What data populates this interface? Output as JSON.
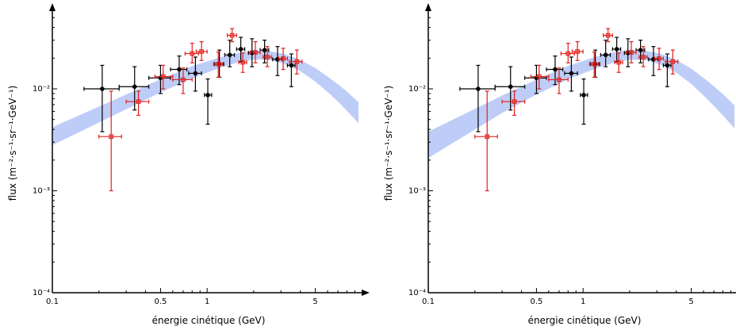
{
  "colors": {
    "band": "#aec0f5",
    "series_black": "#000000",
    "series_red": "#e0201b"
  },
  "chart_data": [
    {
      "type": "scatter",
      "xscale": "log",
      "yscale": "log",
      "xlim": [
        0.1,
        9.5
      ],
      "ylim": [
        0.0001,
        0.06
      ],
      "xlabel": "énergie cinétique (GeV)",
      "ylabel": "flux (m⁻²·s⁻¹·sr⁻¹·GeV⁻¹)",
      "xticks": [
        0.1,
        0.5,
        1,
        5
      ],
      "xtick_labels": [
        "0.1",
        "0.5",
        "1",
        "5"
      ],
      "yticks": [
        0.0001,
        0.001,
        0.01
      ],
      "ytick_labels": [
        "10⁻⁴",
        "10⁻³",
        "10⁻²"
      ],
      "band": {
        "x": [
          0.1,
          0.3,
          0.5,
          0.8,
          1.2,
          1.6,
          2.0,
          2.5,
          3.2,
          4.0,
          5.0,
          6.0,
          7.0,
          8.0,
          9.5
        ],
        "lower": [
          0.0028,
          0.0063,
          0.0092,
          0.0127,
          0.016,
          0.0183,
          0.0194,
          0.0193,
          0.0175,
          0.0149,
          0.0118,
          0.0093,
          0.0075,
          0.0061,
          0.0046
        ],
        "upper": [
          0.0042,
          0.0088,
          0.0124,
          0.0167,
          0.0203,
          0.0226,
          0.0237,
          0.0236,
          0.0218,
          0.0192,
          0.016,
          0.0132,
          0.0111,
          0.0094,
          0.0074
        ]
      },
      "series": [
        {
          "color": "black",
          "points": [
            {
              "x": 0.21,
              "y": 0.01,
              "xlo": 0.16,
              "xhi": 0.27,
              "ylo": 0.0038,
              "yhi": 0.017
            },
            {
              "x": 0.34,
              "y": 0.0105,
              "xlo": 0.27,
              "xhi": 0.42,
              "ylo": 0.0062,
              "yhi": 0.0165
            },
            {
              "x": 0.5,
              "y": 0.0128,
              "xlo": 0.42,
              "xhi": 0.58,
              "ylo": 0.009,
              "yhi": 0.017
            },
            {
              "x": 0.66,
              "y": 0.0155,
              "xlo": 0.58,
              "xhi": 0.74,
              "ylo": 0.011,
              "yhi": 0.021
            },
            {
              "x": 0.84,
              "y": 0.0142,
              "xlo": 0.76,
              "xhi": 0.92,
              "ylo": 0.0095,
              "yhi": 0.0205
            },
            {
              "x": 1.01,
              "y": 0.0087,
              "xlo": 0.96,
              "xhi": 1.07,
              "ylo": 0.0045,
              "yhi": 0.0125
            },
            {
              "x": 1.2,
              "y": 0.0175,
              "xlo": 1.12,
              "xhi": 1.28,
              "ylo": 0.013,
              "yhi": 0.024
            },
            {
              "x": 1.4,
              "y": 0.0215,
              "xlo": 1.3,
              "xhi": 1.5,
              "ylo": 0.0165,
              "yhi": 0.03
            },
            {
              "x": 1.65,
              "y": 0.0245,
              "xlo": 1.55,
              "xhi": 1.75,
              "ylo": 0.0185,
              "yhi": 0.032
            },
            {
              "x": 1.95,
              "y": 0.0225,
              "xlo": 1.85,
              "xhi": 2.05,
              "ylo": 0.0165,
              "yhi": 0.031
            },
            {
              "x": 2.35,
              "y": 0.024,
              "xlo": 2.2,
              "xhi": 2.5,
              "ylo": 0.018,
              "yhi": 0.03
            },
            {
              "x": 2.85,
              "y": 0.0195,
              "xlo": 2.65,
              "xhi": 3.05,
              "ylo": 0.0135,
              "yhi": 0.026
            },
            {
              "x": 3.5,
              "y": 0.017,
              "xlo": 3.3,
              "xhi": 3.7,
              "ylo": 0.0105,
              "yhi": 0.022
            }
          ]
        },
        {
          "color": "red",
          "points": [
            {
              "x": 0.24,
              "y": 0.0034,
              "xlo": 0.2,
              "xhi": 0.28,
              "ylo": 0.001,
              "yhi": 0.0095
            },
            {
              "x": 0.36,
              "y": 0.0075,
              "xlo": 0.3,
              "xhi": 0.42,
              "ylo": 0.0055,
              "yhi": 0.0095
            },
            {
              "x": 0.52,
              "y": 0.0132,
              "xlo": 0.46,
              "xhi": 0.6,
              "ylo": 0.01,
              "yhi": 0.017
            },
            {
              "x": 0.7,
              "y": 0.0123,
              "xlo": 0.6,
              "xhi": 0.8,
              "ylo": 0.009,
              "yhi": 0.016
            },
            {
              "x": 0.8,
              "y": 0.0222,
              "xlo": 0.72,
              "xhi": 0.88,
              "ylo": 0.018,
              "yhi": 0.028
            },
            {
              "x": 0.92,
              "y": 0.0232,
              "xlo": 0.85,
              "xhi": 1.0,
              "ylo": 0.019,
              "yhi": 0.029
            },
            {
              "x": 1.18,
              "y": 0.0175,
              "xlo": 1.1,
              "xhi": 1.26,
              "ylo": 0.013,
              "yhi": 0.023
            },
            {
              "x": 1.45,
              "y": 0.0335,
              "xlo": 1.35,
              "xhi": 1.55,
              "ylo": 0.029,
              "yhi": 0.039
            },
            {
              "x": 1.7,
              "y": 0.0182,
              "xlo": 1.6,
              "xhi": 1.8,
              "ylo": 0.0145,
              "yhi": 0.0225
            },
            {
              "x": 2.05,
              "y": 0.0228,
              "xlo": 1.9,
              "xhi": 2.2,
              "ylo": 0.018,
              "yhi": 0.029
            },
            {
              "x": 2.45,
              "y": 0.0205,
              "xlo": 2.3,
              "xhi": 2.6,
              "ylo": 0.0165,
              "yhi": 0.026
            },
            {
              "x": 3.1,
              "y": 0.0198,
              "xlo": 2.9,
              "xhi": 3.3,
              "ylo": 0.0155,
              "yhi": 0.025
            },
            {
              "x": 3.8,
              "y": 0.0185,
              "xlo": 3.4,
              "xhi": 4.1,
              "ylo": 0.014,
              "yhi": 0.024
            }
          ]
        }
      ]
    },
    {
      "type": "scatter",
      "xscale": "log",
      "yscale": "log",
      "xlim": [
        0.1,
        9.5
      ],
      "ylim": [
        0.0001,
        0.06
      ],
      "xlabel": "énergie cinétique (GeV)",
      "ylabel": "flux (m⁻²·s⁻¹·sr⁻¹·GeV⁻¹)",
      "xticks": [
        0.1,
        0.5,
        1,
        5
      ],
      "xtick_labels": [
        "0.1",
        "0.5",
        "1",
        "5"
      ],
      "yticks": [
        0.0001,
        0.001,
        0.01
      ],
      "ytick_labels": [
        "10⁻⁴",
        "10⁻³",
        "10⁻²"
      ],
      "band": {
        "x": [
          0.1,
          0.3,
          0.5,
          0.8,
          1.2,
          1.6,
          2.0,
          2.5,
          3.2,
          4.0,
          5.0,
          6.0,
          7.0,
          8.0,
          9.5
        ],
        "lower": [
          0.0021,
          0.0058,
          0.0088,
          0.0124,
          0.0158,
          0.0182,
          0.0193,
          0.0192,
          0.0172,
          0.0144,
          0.0112,
          0.0086,
          0.0068,
          0.0055,
          0.0041
        ],
        "upper": [
          0.0038,
          0.0086,
          0.0123,
          0.0168,
          0.0206,
          0.023,
          0.024,
          0.0238,
          0.022,
          0.0192,
          0.0158,
          0.0128,
          0.0106,
          0.0089,
          0.0069
        ]
      },
      "series": [
        {
          "color": "black",
          "points": [
            {
              "x": 0.21,
              "y": 0.01,
              "xlo": 0.16,
              "xhi": 0.27,
              "ylo": 0.0038,
              "yhi": 0.017
            },
            {
              "x": 0.34,
              "y": 0.0105,
              "xlo": 0.27,
              "xhi": 0.42,
              "ylo": 0.0062,
              "yhi": 0.0165
            },
            {
              "x": 0.5,
              "y": 0.0128,
              "xlo": 0.42,
              "xhi": 0.58,
              "ylo": 0.009,
              "yhi": 0.017
            },
            {
              "x": 0.66,
              "y": 0.0155,
              "xlo": 0.58,
              "xhi": 0.74,
              "ylo": 0.011,
              "yhi": 0.021
            },
            {
              "x": 0.84,
              "y": 0.0142,
              "xlo": 0.76,
              "xhi": 0.92,
              "ylo": 0.0095,
              "yhi": 0.0205
            },
            {
              "x": 1.01,
              "y": 0.0087,
              "xlo": 0.96,
              "xhi": 1.07,
              "ylo": 0.0045,
              "yhi": 0.0125
            },
            {
              "x": 1.2,
              "y": 0.0175,
              "xlo": 1.12,
              "xhi": 1.28,
              "ylo": 0.013,
              "yhi": 0.024
            },
            {
              "x": 1.4,
              "y": 0.0215,
              "xlo": 1.3,
              "xhi": 1.5,
              "ylo": 0.0165,
              "yhi": 0.03
            },
            {
              "x": 1.65,
              "y": 0.0245,
              "xlo": 1.55,
              "xhi": 1.75,
              "ylo": 0.0185,
              "yhi": 0.032
            },
            {
              "x": 1.95,
              "y": 0.0225,
              "xlo": 1.85,
              "xhi": 2.05,
              "ylo": 0.0165,
              "yhi": 0.031
            },
            {
              "x": 2.35,
              "y": 0.024,
              "xlo": 2.2,
              "xhi": 2.5,
              "ylo": 0.018,
              "yhi": 0.03
            },
            {
              "x": 2.85,
              "y": 0.0195,
              "xlo": 2.65,
              "xhi": 3.05,
              "ylo": 0.0135,
              "yhi": 0.026
            },
            {
              "x": 3.5,
              "y": 0.017,
              "xlo": 3.3,
              "xhi": 3.7,
              "ylo": 0.0105,
              "yhi": 0.022
            }
          ]
        },
        {
          "color": "red",
          "points": [
            {
              "x": 0.24,
              "y": 0.0034,
              "xlo": 0.2,
              "xhi": 0.28,
              "ylo": 0.001,
              "yhi": 0.0095
            },
            {
              "x": 0.36,
              "y": 0.0075,
              "xlo": 0.3,
              "xhi": 0.42,
              "ylo": 0.0055,
              "yhi": 0.0095
            },
            {
              "x": 0.52,
              "y": 0.0132,
              "xlo": 0.46,
              "xhi": 0.6,
              "ylo": 0.01,
              "yhi": 0.017
            },
            {
              "x": 0.7,
              "y": 0.0123,
              "xlo": 0.6,
              "xhi": 0.8,
              "ylo": 0.009,
              "yhi": 0.016
            },
            {
              "x": 0.8,
              "y": 0.0222,
              "xlo": 0.72,
              "xhi": 0.88,
              "ylo": 0.018,
              "yhi": 0.028
            },
            {
              "x": 0.92,
              "y": 0.0232,
              "xlo": 0.85,
              "xhi": 1.0,
              "ylo": 0.019,
              "yhi": 0.029
            },
            {
              "x": 1.18,
              "y": 0.0175,
              "xlo": 1.1,
              "xhi": 1.26,
              "ylo": 0.013,
              "yhi": 0.023
            },
            {
              "x": 1.45,
              "y": 0.0335,
              "xlo": 1.35,
              "xhi": 1.55,
              "ylo": 0.029,
              "yhi": 0.039
            },
            {
              "x": 1.7,
              "y": 0.0182,
              "xlo": 1.6,
              "xhi": 1.8,
              "ylo": 0.0145,
              "yhi": 0.0225
            },
            {
              "x": 2.05,
              "y": 0.0228,
              "xlo": 1.9,
              "xhi": 2.2,
              "ylo": 0.018,
              "yhi": 0.029
            },
            {
              "x": 2.45,
              "y": 0.0205,
              "xlo": 2.3,
              "xhi": 2.6,
              "ylo": 0.0165,
              "yhi": 0.026
            },
            {
              "x": 3.1,
              "y": 0.0198,
              "xlo": 2.9,
              "xhi": 3.3,
              "ylo": 0.0155,
              "yhi": 0.025
            },
            {
              "x": 3.8,
              "y": 0.0185,
              "xlo": 3.4,
              "xhi": 4.1,
              "ylo": 0.014,
              "yhi": 0.024
            }
          ]
        }
      ]
    }
  ]
}
